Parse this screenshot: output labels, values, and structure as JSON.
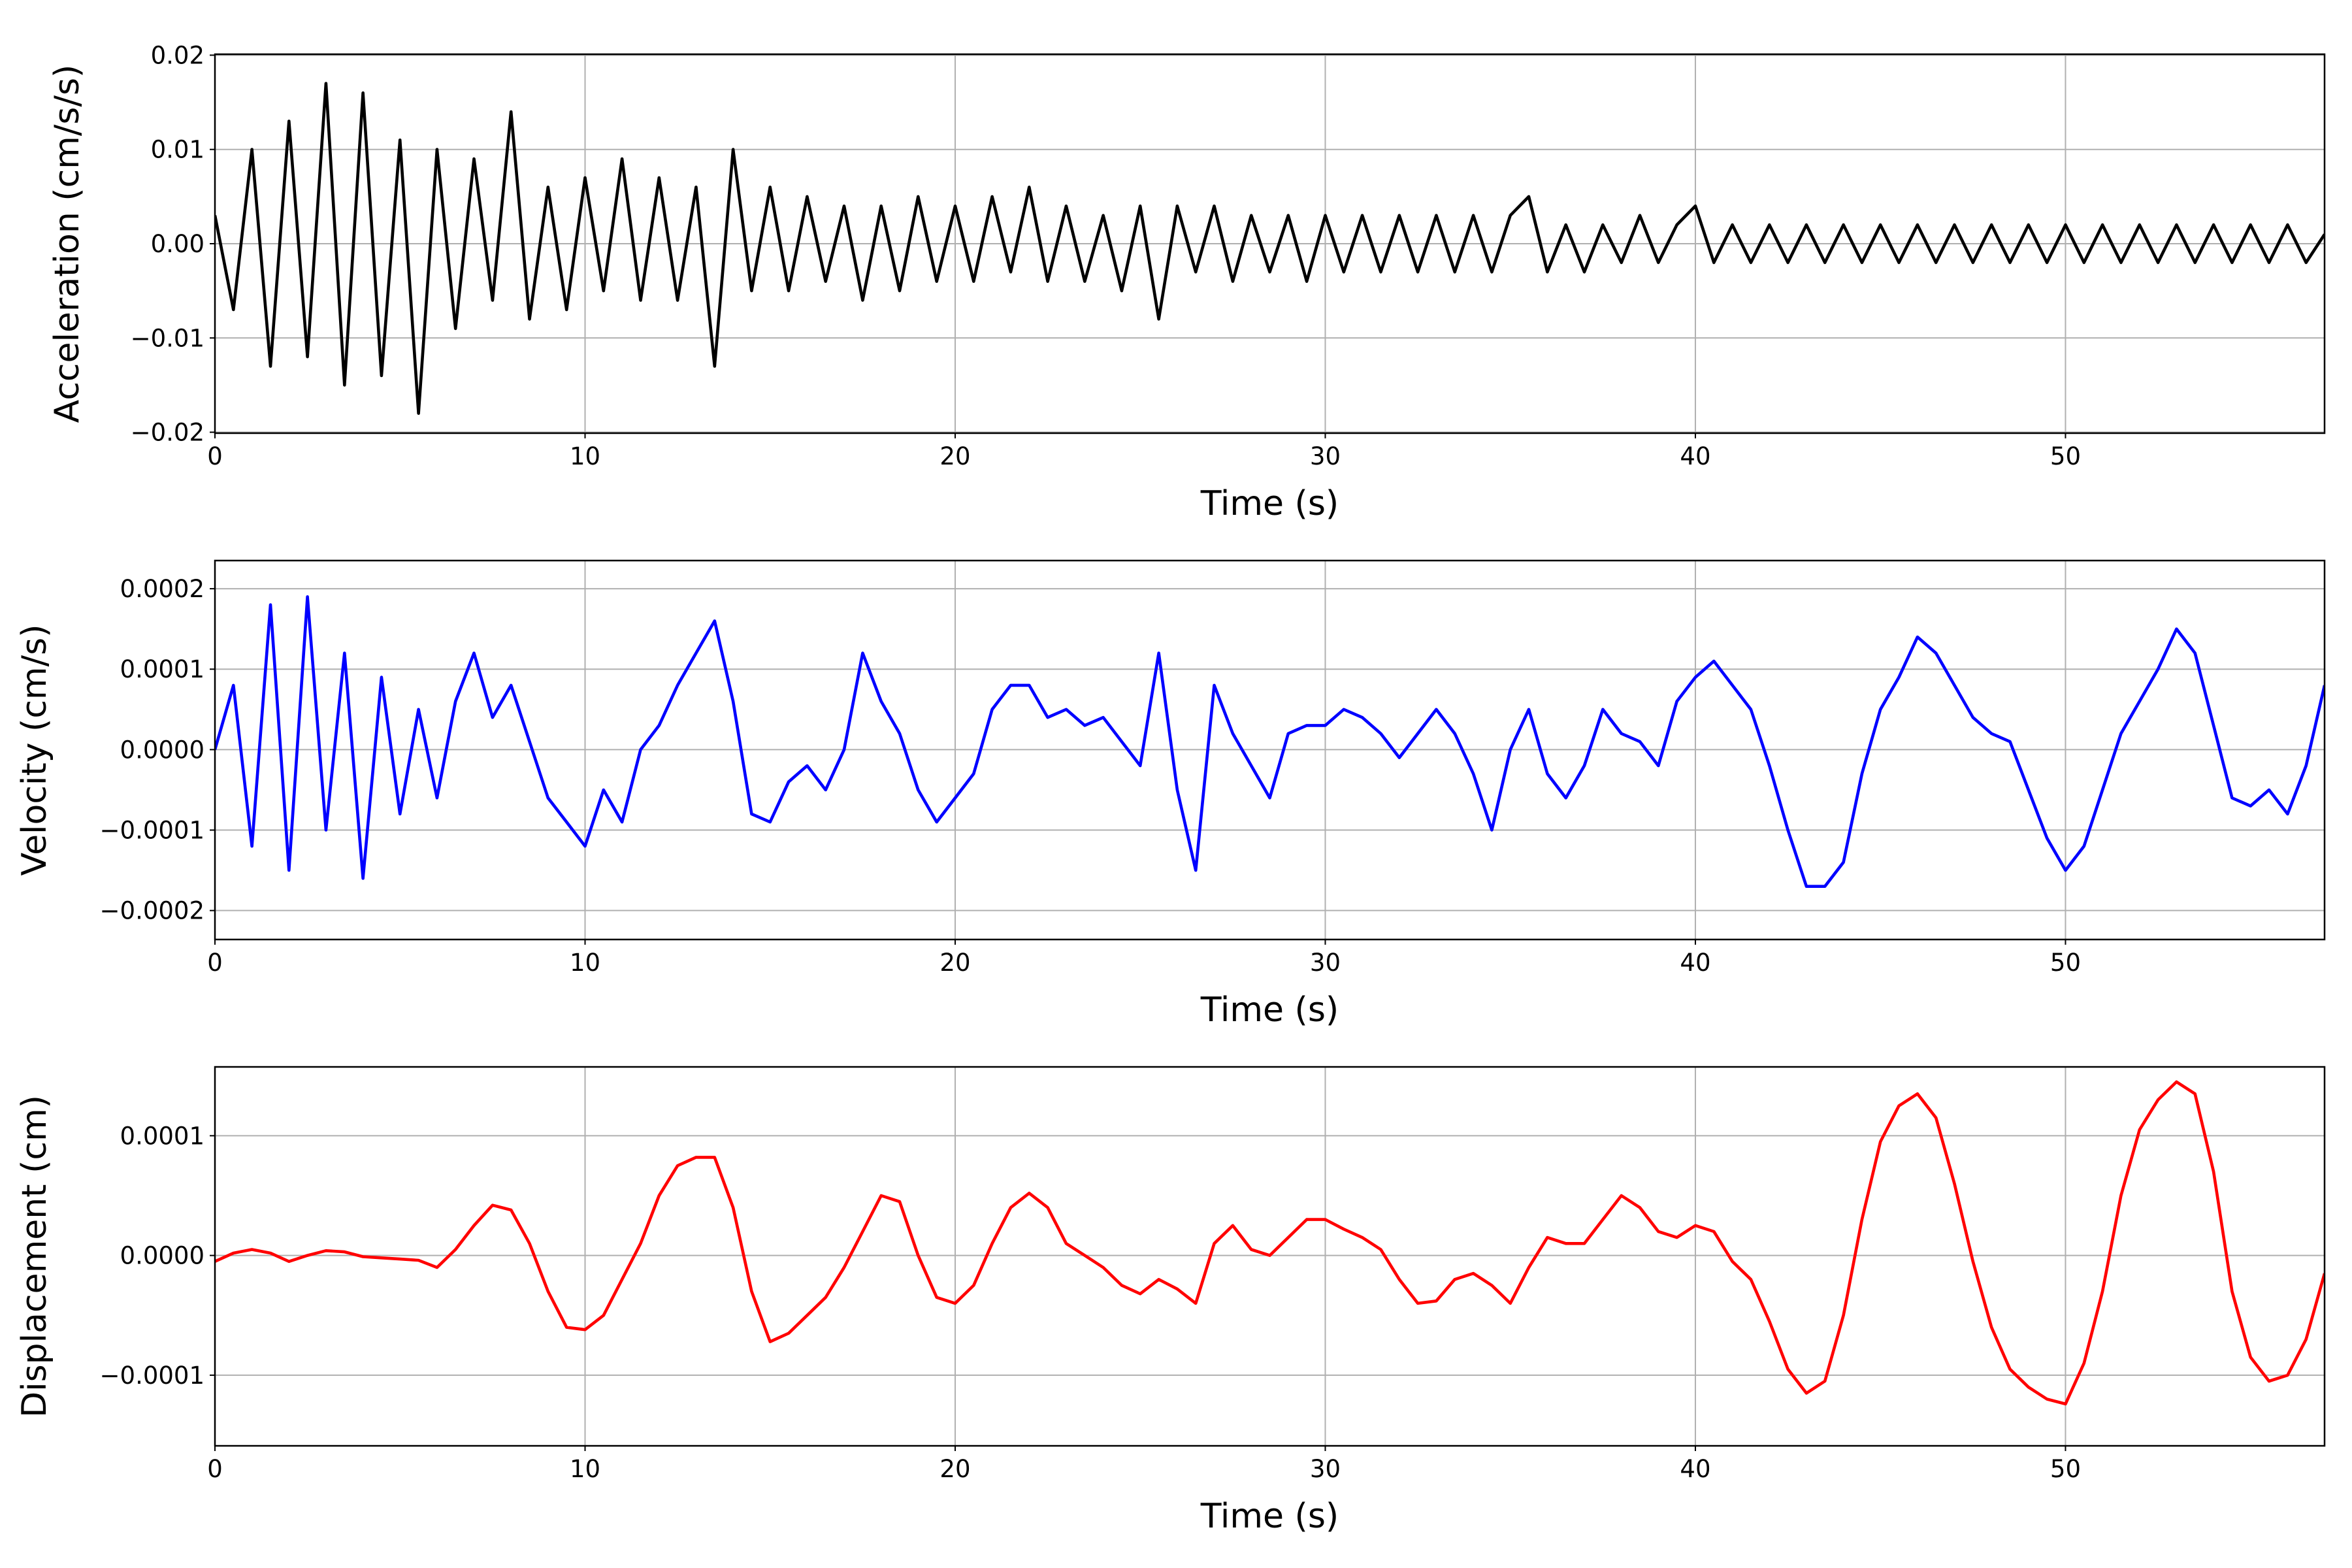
{
  "chart_data": [
    {
      "type": "line",
      "xlabel": "Time (s)",
      "ylabel": "Acceleration (cm/s/s)",
      "color": "#000000",
      "grid": true,
      "xlim": [
        0,
        57
      ],
      "xticks": [
        0,
        10,
        20,
        30,
        40,
        50
      ],
      "ylim": [
        -0.0201,
        0.0201
      ],
      "yticks": [
        {
          "value": -0.02,
          "label": "−0.02"
        },
        {
          "value": -0.01,
          "label": "−0.01"
        },
        {
          "value": 0,
          "label": "0.00"
        },
        {
          "value": 0.01,
          "label": "0.01"
        },
        {
          "value": 0.02,
          "label": "0.02"
        }
      ],
      "x": [
        0,
        0.5,
        1,
        1.5,
        2,
        2.5,
        3,
        3.5,
        4,
        4.5,
        5,
        5.5,
        6,
        6.5,
        7,
        7.5,
        8,
        8.5,
        9,
        9.5,
        10,
        10.5,
        11,
        11.5,
        12,
        12.5,
        13,
        13.5,
        14,
        14.5,
        15,
        15.5,
        16,
        16.5,
        17,
        17.5,
        18,
        18.5,
        19,
        19.5,
        20,
        20.5,
        21,
        21.5,
        22,
        22.5,
        23,
        23.5,
        24,
        24.5,
        25,
        25.5,
        26,
        26.5,
        27,
        27.5,
        28,
        28.5,
        29,
        29.5,
        30,
        30.5,
        31,
        31.5,
        32,
        32.5,
        33,
        33.5,
        34,
        34.5,
        35,
        35.5,
        36,
        36.5,
        37,
        37.5,
        38,
        38.5,
        39,
        39.5,
        40,
        40.5,
        41,
        41.5,
        42,
        42.5,
        43,
        43.5,
        44,
        44.5,
        45,
        45.5,
        46,
        46.5,
        47,
        47.5,
        48,
        48.5,
        49,
        49.5,
        50,
        50.5,
        51,
        51.5,
        52,
        52.5,
        53,
        53.5,
        54,
        54.5,
        55,
        55.5,
        56,
        56.5,
        57
      ],
      "values": [
        0.003,
        -0.007,
        0.01,
        -0.013,
        0.013,
        -0.012,
        0.017,
        -0.015,
        0.016,
        -0.014,
        0.011,
        -0.018,
        0.01,
        -0.009,
        0.009,
        -0.006,
        0.014,
        -0.008,
        0.006,
        -0.007,
        0.007,
        -0.005,
        0.009,
        -0.006,
        0.007,
        -0.006,
        0.006,
        -0.013,
        0.01,
        -0.005,
        0.006,
        -0.005,
        0.005,
        -0.004,
        0.004,
        -0.006,
        0.004,
        -0.005,
        0.005,
        -0.004,
        0.004,
        -0.004,
        0.005,
        -0.003,
        0.006,
        -0.004,
        0.004,
        -0.004,
        0.003,
        -0.005,
        0.004,
        -0.008,
        0.004,
        -0.003,
        0.004,
        -0.004,
        0.003,
        -0.003,
        0.003,
        -0.004,
        0.003,
        -0.003,
        0.003,
        -0.003,
        0.003,
        -0.003,
        0.003,
        -0.003,
        0.003,
        -0.003,
        0.003,
        0.005,
        -0.003,
        0.002,
        -0.003,
        0.002,
        -0.002,
        0.003,
        -0.002,
        0.002,
        0.004,
        -0.002,
        0.002,
        -0.002,
        0.002,
        -0.002,
        0.002,
        -0.002,
        0.002,
        -0.002,
        0.002,
        -0.002,
        0.002,
        -0.002,
        0.002,
        -0.002,
        0.002,
        -0.002,
        0.002,
        -0.002,
        0.002,
        -0.002,
        0.002,
        -0.002,
        0.002,
        -0.002,
        0.002,
        -0.002,
        0.002,
        -0.002,
        0.002,
        -0.002,
        0.002,
        -0.002,
        0.001
      ]
    },
    {
      "type": "line",
      "xlabel": "Time (s)",
      "ylabel": "Velocity (cm/s)",
      "color": "#0000ff",
      "grid": true,
      "xlim": [
        0,
        57
      ],
      "xticks": [
        0,
        10,
        20,
        30,
        40,
        50
      ],
      "ylim": [
        -0.000236,
        0.000235
      ],
      "yticks": [
        {
          "value": -0.0002,
          "label": "−0.0002"
        },
        {
          "value": -0.0001,
          "label": "−0.0001"
        },
        {
          "value": 0,
          "label": "0.0000"
        },
        {
          "value": 0.0001,
          "label": "0.0001"
        },
        {
          "value": 0.0002,
          "label": "0.0002"
        }
      ],
      "x": [
        0,
        0.5,
        1,
        1.5,
        2,
        2.5,
        3,
        3.5,
        4,
        4.5,
        5,
        5.5,
        6,
        6.5,
        7,
        7.5,
        8,
        8.5,
        9,
        9.5,
        10,
        10.5,
        11,
        11.5,
        12,
        12.5,
        13,
        13.5,
        14,
        14.5,
        15,
        15.5,
        16,
        16.5,
        17,
        17.5,
        18,
        18.5,
        19,
        19.5,
        20,
        20.5,
        21,
        21.5,
        22,
        22.5,
        23,
        23.5,
        24,
        24.5,
        25,
        25.5,
        26,
        26.5,
        27,
        27.5,
        28,
        28.5,
        29,
        29.5,
        30,
        30.5,
        31,
        31.5,
        32,
        32.5,
        33,
        33.5,
        34,
        34.5,
        35,
        35.5,
        36,
        36.5,
        37,
        37.5,
        38,
        38.5,
        39,
        39.5,
        40,
        40.5,
        41,
        41.5,
        42,
        42.5,
        43,
        43.5,
        44,
        44.5,
        45,
        45.5,
        46,
        46.5,
        47,
        47.5,
        48,
        48.5,
        49,
        49.5,
        50,
        50.5,
        51,
        51.5,
        52,
        52.5,
        53,
        53.5,
        54,
        54.5,
        55,
        55.5,
        56,
        56.5,
        57
      ],
      "values": [
        0,
        8e-05,
        -0.00012,
        0.00018,
        -0.00015,
        0.00019,
        -0.0001,
        0.00012,
        -0.00016,
        9e-05,
        -8e-05,
        5e-05,
        -6e-05,
        6e-05,
        0.00012,
        4e-05,
        8e-05,
        1e-05,
        -6e-05,
        -9e-05,
        -0.00012,
        -5e-05,
        -9e-05,
        0,
        3e-05,
        8e-05,
        0.00012,
        0.00016,
        6e-05,
        -8e-05,
        -9e-05,
        -4e-05,
        -2e-05,
        -5e-05,
        0,
        0.00012,
        6e-05,
        2e-05,
        -5e-05,
        -9e-05,
        -6e-05,
        -3e-05,
        5e-05,
        8e-05,
        8e-05,
        4e-05,
        5e-05,
        3e-05,
        4e-05,
        1e-05,
        -2e-05,
        0.00012,
        -5e-05,
        -0.00015,
        8e-05,
        2e-05,
        -2e-05,
        -6e-05,
        2e-05,
        3e-05,
        3e-05,
        5e-05,
        4e-05,
        2e-05,
        -1e-05,
        2e-05,
        5e-05,
        2e-05,
        -3e-05,
        -0.0001,
        0,
        5e-05,
        -3e-05,
        -6e-05,
        -2e-05,
        5e-05,
        2e-05,
        1e-05,
        -2e-05,
        6e-05,
        9e-05,
        0.00011,
        8e-05,
        5e-05,
        -2e-05,
        -0.0001,
        -0.00017,
        -0.00017,
        -0.00014,
        -3e-05,
        5e-05,
        9e-05,
        0.00014,
        0.00012,
        8e-05,
        4e-05,
        2e-05,
        1e-05,
        -5e-05,
        -0.00011,
        -0.00015,
        -0.00012,
        -5e-05,
        2e-05,
        6e-05,
        0.0001,
        0.00015,
        0.00012,
        3e-05,
        -6e-05,
        -7e-05,
        -5e-05,
        -8e-05,
        -2e-05,
        8e-05
      ]
    },
    {
      "type": "line",
      "xlabel": "Time (s)",
      "ylabel": "Displacement (cm)",
      "color": "#ff0000",
      "grid": true,
      "xlim": [
        0,
        57
      ],
      "xticks": [
        0,
        10,
        20,
        30,
        40,
        50
      ],
      "ylim": [
        -0.000159,
        0.0001575
      ],
      "yticks": [
        {
          "value": -0.0001,
          "label": "−0.0001"
        },
        {
          "value": 0,
          "label": "0.0000"
        },
        {
          "value": 0.0001,
          "label": "0.0001"
        }
      ],
      "x": [
        0,
        0.5,
        1,
        1.5,
        2,
        2.5,
        3,
        3.5,
        4,
        4.5,
        5,
        5.5,
        6,
        6.5,
        7,
        7.5,
        8,
        8.5,
        9,
        9.5,
        10,
        10.5,
        11,
        11.5,
        12,
        12.5,
        13,
        13.5,
        14,
        14.5,
        15,
        15.5,
        16,
        16.5,
        17,
        17.5,
        18,
        18.5,
        19,
        19.5,
        20,
        20.5,
        21,
        21.5,
        22,
        22.5,
        23,
        23.5,
        24,
        24.5,
        25,
        25.5,
        26,
        26.5,
        27,
        27.5,
        28,
        28.5,
        29,
        29.5,
        30,
        30.5,
        31,
        31.5,
        32,
        32.5,
        33,
        33.5,
        34,
        34.5,
        35,
        35.5,
        36,
        36.5,
        37,
        37.5,
        38,
        38.5,
        39,
        39.5,
        40,
        40.5,
        41,
        41.5,
        42,
        42.5,
        43,
        43.5,
        44,
        44.5,
        45,
        45.5,
        46,
        46.5,
        47,
        47.5,
        48,
        48.5,
        49,
        49.5,
        50,
        50.5,
        51,
        51.5,
        52,
        52.5,
        53,
        53.5,
        54,
        54.5,
        55,
        55.5,
        56,
        56.5,
        57
      ],
      "values": [
        -5e-06,
        2e-06,
        5e-06,
        2e-06,
        -5e-06,
        0,
        4e-06,
        3e-06,
        -1e-06,
        -2e-06,
        -3e-06,
        -4e-06,
        -1e-05,
        5e-06,
        2.5e-05,
        4.2e-05,
        3.8e-05,
        1e-05,
        -3e-05,
        -6e-05,
        -6.2e-05,
        -5e-05,
        -2e-05,
        1e-05,
        5e-05,
        7.5e-05,
        8.2e-05,
        8.2e-05,
        4e-05,
        -3e-05,
        -7.2e-05,
        -6.5e-05,
        -5e-05,
        -3.5e-05,
        -1e-05,
        2e-05,
        5e-05,
        4.5e-05,
        0,
        -3.5e-05,
        -4e-05,
        -2.5e-05,
        1e-05,
        4e-05,
        5.2e-05,
        4e-05,
        1e-05,
        0,
        -1e-05,
        -2.5e-05,
        -3.2e-05,
        -2e-05,
        -2.8e-05,
        -4e-05,
        1e-05,
        2.5e-05,
        5e-06,
        0,
        1.5e-05,
        3e-05,
        3e-05,
        2.2e-05,
        1.5e-05,
        5e-06,
        -2e-05,
        -4e-05,
        -3.8e-05,
        -2e-05,
        -1.5e-05,
        -2.5e-05,
        -4e-05,
        -1e-05,
        1.5e-05,
        1e-05,
        1e-05,
        3e-05,
        5e-05,
        4e-05,
        2e-05,
        1.5e-05,
        2.5e-05,
        2e-05,
        -5e-06,
        -2e-05,
        -5.5e-05,
        -9.5e-05,
        -0.000115,
        -0.000105,
        -5e-05,
        3e-05,
        9.5e-05,
        0.000125,
        0.000135,
        0.000115,
        6e-05,
        -5e-06,
        -6e-05,
        -9.5e-05,
        -0.00011,
        -0.00012,
        -0.000124,
        -9e-05,
        -3e-05,
        5e-05,
        0.000105,
        0.00013,
        0.000145,
        0.000135,
        7e-05,
        -3e-05,
        -8.5e-05,
        -0.000105,
        -0.0001,
        -7e-05,
        -1.5e-05
      ]
    }
  ]
}
